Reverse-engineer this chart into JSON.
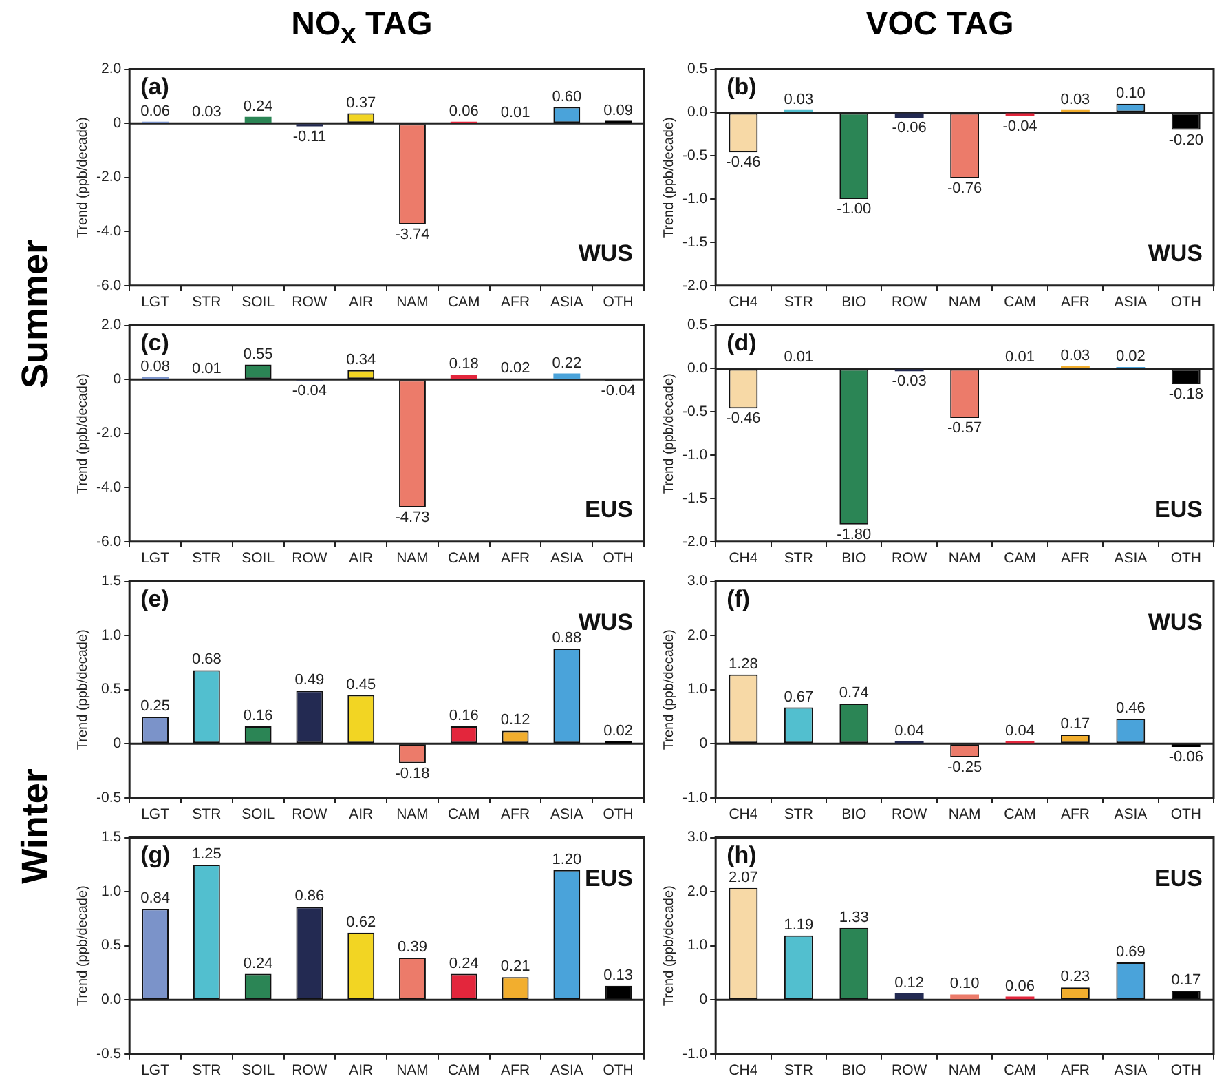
{
  "chart_data": [
    {
      "type": "bar",
      "title": "NO$_{x}$ TAG",
      "ylabel": "Trend (ppb/decade)",
      "annotations": [
        "(a)",
        "WUS",
        "Summer"
      ],
      "categories": [
        "LGT",
        "STR",
        "SOIL",
        "ROW",
        "AIR",
        "NAM",
        "CAM",
        "AFR",
        "ASIA",
        "OTH"
      ],
      "values": [
        0.06,
        0.03,
        0.24,
        -0.11,
        0.37,
        -3.74,
        0.06,
        0.01,
        0.6,
        0.09
      ],
      "value_labels": [
        "0.06",
        "0.03",
        "0.24",
        "-0.11",
        "0.37",
        "-3.74",
        "0.06",
        "0.01",
        "0.60",
        "0.09"
      ],
      "colors": [
        "#7b93c9",
        "#52bfcf",
        "#2b8555",
        "#232a52",
        "#f2d523",
        "#ec7b6a",
        "#e3263c",
        "#f2ae2e",
        "#4aa3da",
        "#000000"
      ],
      "ylim": [
        -6,
        2
      ],
      "yticks": [
        {
          "value": -6,
          "label": "-6.0"
        },
        {
          "value": -4,
          "label": "-4.0"
        },
        {
          "value": -2,
          "label": "-2.0"
        },
        {
          "value": 0,
          "label": "0"
        },
        {
          "value": 2,
          "label": "2.0"
        }
      ]
    },
    {
      "type": "bar",
      "title": "VOC TAG",
      "ylabel": "Trend (ppb/decade)",
      "annotations": [
        "(b)",
        "WUS"
      ],
      "categories": [
        "CH4",
        "STR",
        "BIO",
        "ROW",
        "NAM",
        "CAM",
        "AFR",
        "ASIA",
        "OTH"
      ],
      "values": [
        -0.46,
        0.03,
        -1.0,
        -0.06,
        -0.76,
        -0.04,
        0.03,
        0.1,
        -0.2
      ],
      "value_labels": [
        "-0.46",
        "0.03",
        "-1.00",
        "-0.06",
        "-0.76",
        "-0.04",
        "0.03",
        "0.10",
        "-0.20"
      ],
      "colors": [
        "#f7d9a6",
        "#52bfcf",
        "#2b8555",
        "#232a52",
        "#ec7b6a",
        "#e3263c",
        "#f2ae2e",
        "#4aa3da",
        "#000000"
      ],
      "ylim": [
        -2,
        0.5
      ],
      "yticks": [
        {
          "value": -2,
          "label": "-2.0"
        },
        {
          "value": -1.5,
          "label": "-1.5"
        },
        {
          "value": -1,
          "label": "-1.0"
        },
        {
          "value": -0.5,
          "label": "-0.5"
        },
        {
          "value": 0,
          "label": "0.0"
        },
        {
          "value": 0.5,
          "label": "0.5"
        }
      ]
    },
    {
      "type": "bar",
      "ylabel": "Trend (ppb/decade)",
      "annotations": [
        "(c)",
        "EUS"
      ],
      "categories": [
        "LGT",
        "STR",
        "SOIL",
        "ROW",
        "AIR",
        "NAM",
        "CAM",
        "AFR",
        "ASIA",
        "OTH"
      ],
      "values": [
        0.08,
        0.01,
        0.55,
        -0.04,
        0.34,
        -4.73,
        0.18,
        0.02,
        0.22,
        -0.04
      ],
      "value_labels": [
        "0.08",
        "0.01",
        "0.55",
        "-0.04",
        "0.34",
        "-4.73",
        "0.18",
        "0.02",
        "0.22",
        "-0.04"
      ],
      "colors": [
        "#7b93c9",
        "#52bfcf",
        "#2b8555",
        "#232a52",
        "#f2d523",
        "#ec7b6a",
        "#e3263c",
        "#f2ae2e",
        "#4aa3da",
        "#000000"
      ],
      "ylim": [
        -6,
        2
      ],
      "yticks": [
        {
          "value": -6,
          "label": "-6.0"
        },
        {
          "value": -4,
          "label": "-4.0"
        },
        {
          "value": -2,
          "label": "-2.0"
        },
        {
          "value": 0,
          "label": "0"
        },
        {
          "value": 2,
          "label": "2.0"
        }
      ]
    },
    {
      "type": "bar",
      "ylabel": "Trend (ppb/decade)",
      "annotations": [
        "(d)",
        "EUS"
      ],
      "categories": [
        "CH4",
        "STR",
        "BIO",
        "ROW",
        "NAM",
        "CAM",
        "AFR",
        "ASIA",
        "OTH"
      ],
      "values": [
        -0.46,
        0.01,
        -1.8,
        -0.03,
        -0.57,
        0.01,
        0.03,
        0.02,
        -0.18
      ],
      "value_labels": [
        "-0.46",
        "0.01",
        "-1.80",
        "-0.03",
        "-0.57",
        "0.01",
        "0.03",
        "0.02",
        "-0.18"
      ],
      "colors": [
        "#f7d9a6",
        "#52bfcf",
        "#2b8555",
        "#232a52",
        "#ec7b6a",
        "#e3263c",
        "#f2ae2e",
        "#4aa3da",
        "#000000"
      ],
      "ylim": [
        -2,
        0.5
      ],
      "yticks": [
        {
          "value": -2,
          "label": "-2.0"
        },
        {
          "value": -1.5,
          "label": "-1.5"
        },
        {
          "value": -1,
          "label": "-1.0"
        },
        {
          "value": -0.5,
          "label": "-0.5"
        },
        {
          "value": 0,
          "label": "0.0"
        },
        {
          "value": 0.5,
          "label": "0.5"
        }
      ]
    },
    {
      "type": "bar",
      "ylabel": "Trend (ppb/decade)",
      "annotations": [
        "(e)",
        "WUS",
        "Winter"
      ],
      "categories": [
        "LGT",
        "STR",
        "SOIL",
        "ROW",
        "AIR",
        "NAM",
        "CAM",
        "AFR",
        "ASIA",
        "OTH"
      ],
      "values": [
        0.25,
        0.68,
        0.16,
        0.49,
        0.45,
        -0.18,
        0.16,
        0.12,
        0.88,
        0.02
      ],
      "value_labels": [
        "0.25",
        "0.68",
        "0.16",
        "0.49",
        "0.45",
        "-0.18",
        "0.16",
        "0.12",
        "0.88",
        "0.02"
      ],
      "colors": [
        "#7b93c9",
        "#52bfcf",
        "#2b8555",
        "#232a52",
        "#f2d523",
        "#ec7b6a",
        "#e3263c",
        "#f2ae2e",
        "#4aa3da",
        "#000000"
      ],
      "ylim": [
        -0.5,
        1.5
      ],
      "yticks": [
        {
          "value": -0.5,
          "label": "-0.5"
        },
        {
          "value": 0,
          "label": "0"
        },
        {
          "value": 0.5,
          "label": "0.5"
        },
        {
          "value": 1,
          "label": "1.0"
        },
        {
          "value": 1.5,
          "label": "1.5"
        }
      ]
    },
    {
      "type": "bar",
      "ylabel": "Trend (ppb/decade)",
      "annotations": [
        "(f)",
        "WUS"
      ],
      "categories": [
        "CH4",
        "STR",
        "BIO",
        "ROW",
        "NAM",
        "CAM",
        "AFR",
        "ASIA",
        "OTH"
      ],
      "values": [
        1.28,
        0.67,
        0.74,
        0.04,
        -0.25,
        0.04,
        0.17,
        0.46,
        -0.06
      ],
      "value_labels": [
        "1.28",
        "0.67",
        "0.74",
        "0.04",
        "-0.25",
        "0.04",
        "0.17",
        "0.46",
        "-0.06"
      ],
      "colors": [
        "#f7d9a6",
        "#52bfcf",
        "#2b8555",
        "#232a52",
        "#ec7b6a",
        "#e3263c",
        "#f2ae2e",
        "#4aa3da",
        "#000000"
      ],
      "ylim": [
        -1,
        3
      ],
      "yticks": [
        {
          "value": -1,
          "label": "-1.0"
        },
        {
          "value": 0,
          "label": "0"
        },
        {
          "value": 1,
          "label": "1.0"
        },
        {
          "value": 2,
          "label": "2.0"
        },
        {
          "value": 3,
          "label": "3.0"
        }
      ]
    },
    {
      "type": "bar",
      "ylabel": "Trend (ppb/decade)",
      "annotations": [
        "(g)",
        "EUS"
      ],
      "categories": [
        "LGT",
        "STR",
        "SOIL",
        "ROW",
        "AIR",
        "NAM",
        "CAM",
        "AFR",
        "ASIA",
        "OTH"
      ],
      "values": [
        0.84,
        1.25,
        0.24,
        0.86,
        0.62,
        0.39,
        0.24,
        0.21,
        1.2,
        0.13
      ],
      "value_labels": [
        "0.84",
        "1.25",
        "0.24",
        "0.86",
        "0.62",
        "0.39",
        "0.24",
        "0.21",
        "1.20",
        "0.13"
      ],
      "colors": [
        "#7b93c9",
        "#52bfcf",
        "#2b8555",
        "#232a52",
        "#f2d523",
        "#ec7b6a",
        "#e3263c",
        "#f2ae2e",
        "#4aa3da",
        "#000000"
      ],
      "ylim": [
        -0.5,
        1.5
      ],
      "yticks": [
        {
          "value": -0.5,
          "label": "-0.5"
        },
        {
          "value": 0,
          "label": "0.0"
        },
        {
          "value": 0.5,
          "label": "0.5"
        },
        {
          "value": 1,
          "label": "1.0"
        },
        {
          "value": 1.5,
          "label": "1.5"
        }
      ]
    },
    {
      "type": "bar",
      "ylabel": "Trend (ppb/decade)",
      "annotations": [
        "(h)",
        "EUS"
      ],
      "categories": [
        "CH4",
        "STR",
        "BIO",
        "ROW",
        "NAM",
        "CAM",
        "AFR",
        "ASIA",
        "OTH"
      ],
      "values": [
        2.07,
        1.19,
        1.33,
        0.12,
        0.1,
        0.06,
        0.23,
        0.69,
        0.17
      ],
      "value_labels": [
        "2.07",
        "1.19",
        "1.33",
        "0.12",
        "0.10",
        "0.06",
        "0.23",
        "0.69",
        "0.17"
      ],
      "colors": [
        "#f7d9a6",
        "#52bfcf",
        "#2b8555",
        "#232a52",
        "#ec7b6a",
        "#e3263c",
        "#f2ae2e",
        "#4aa3da",
        "#000000"
      ],
      "ylim": [
        -1,
        3
      ],
      "yticks": [
        {
          "value": -1,
          "label": "-1.0"
        },
        {
          "value": 0,
          "label": "0"
        },
        {
          "value": 1,
          "label": "1.0"
        },
        {
          "value": 2,
          "label": "2.0"
        },
        {
          "value": 3,
          "label": "3.0"
        }
      ]
    }
  ]
}
